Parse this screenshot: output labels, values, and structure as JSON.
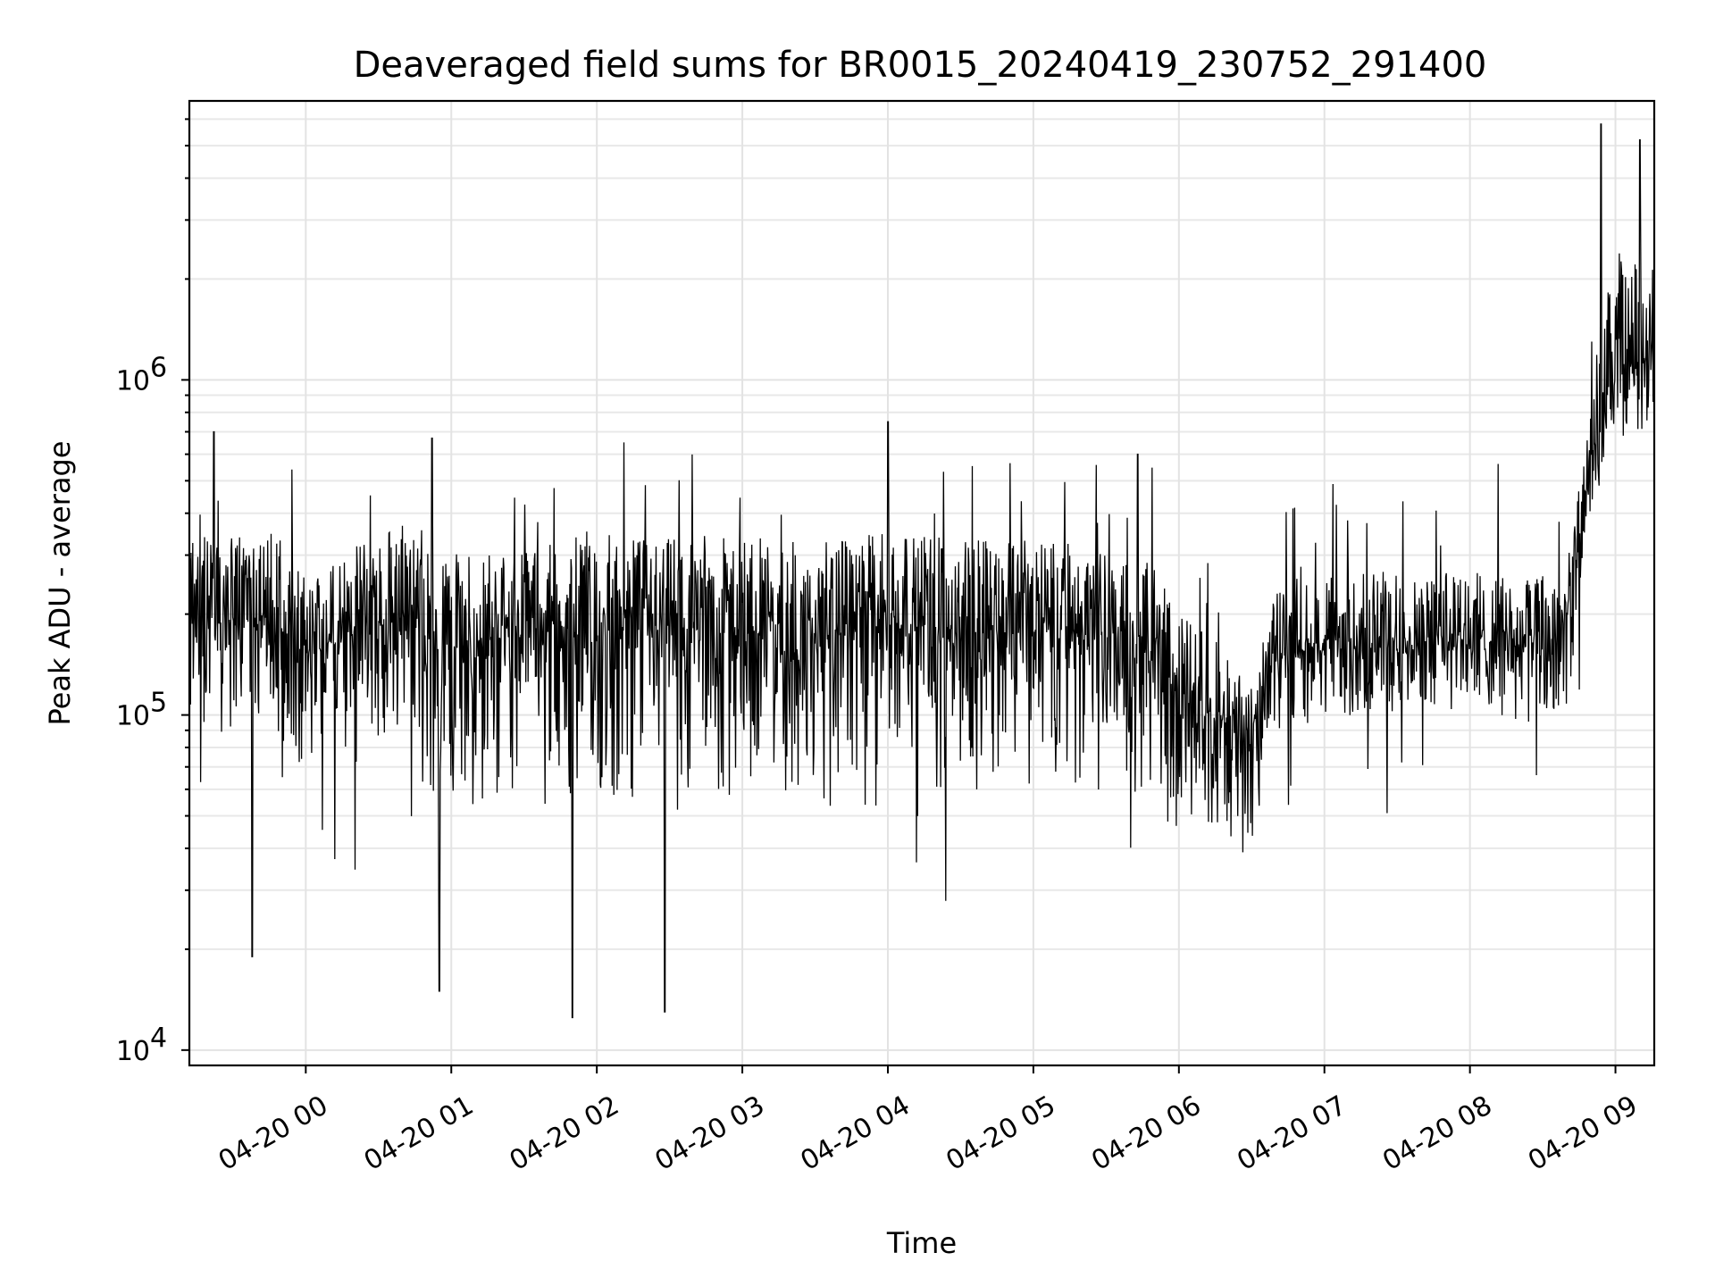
{
  "chart_data": {
    "type": "line",
    "title": "Deaveraged field sums for BR0015_20240419_230752_291400",
    "xlabel": "Time",
    "ylabel": "Peak ADU - average",
    "y_scale": "log",
    "ylim": [
      9000,
      6800000
    ],
    "xlim": [
      "2024-04-19 23:12",
      "2024-04-20 09:16"
    ],
    "grid": true,
    "legend": "none",
    "line_color": "#000000",
    "x_ticks": [
      {
        "at": "2024-04-20 00:00",
        "label": "04-20 00"
      },
      {
        "at": "2024-04-20 01:00",
        "label": "04-20 01"
      },
      {
        "at": "2024-04-20 02:00",
        "label": "04-20 02"
      },
      {
        "at": "2024-04-20 03:00",
        "label": "04-20 03"
      },
      {
        "at": "2024-04-20 04:00",
        "label": "04-20 04"
      },
      {
        "at": "2024-04-20 05:00",
        "label": "04-20 05"
      },
      {
        "at": "2024-04-20 06:00",
        "label": "04-20 06"
      },
      {
        "at": "2024-04-20 07:00",
        "label": "04-20 07"
      },
      {
        "at": "2024-04-20 08:00",
        "label": "04-20 08"
      },
      {
        "at": "2024-04-20 09:00",
        "label": "04-20 09"
      }
    ],
    "y_ticks": [
      {
        "value": 10000,
        "base": "10",
        "exp": "4"
      },
      {
        "value": 100000,
        "base": "10",
        "exp": "5"
      },
      {
        "value": 1000000,
        "base": "10",
        "exp": "6"
      }
    ],
    "series": [
      {
        "x": [
          "2024-04-19 23:12",
          "2024-04-19 23:30",
          "2024-04-19 23:45",
          "2024-04-20 00:00",
          "2024-04-20 00:20",
          "2024-04-20 00:40",
          "2024-04-20 00:50",
          "2024-04-20 01:00",
          "2024-04-20 01:20",
          "2024-04-20 01:40",
          "2024-04-20 02:00",
          "2024-04-20 02:30",
          "2024-04-20 03:00",
          "2024-04-20 03:30",
          "2024-04-20 04:00",
          "2024-04-20 04:30",
          "2024-04-20 05:00",
          "2024-04-20 05:30",
          "2024-04-20 05:50",
          "2024-04-20 06:00",
          "2024-04-20 06:15",
          "2024-04-20 06:30",
          "2024-04-20 06:40",
          "2024-04-20 07:00",
          "2024-04-20 07:30",
          "2024-04-20 08:00",
          "2024-04-20 08:20",
          "2024-04-20 08:40",
          "2024-04-20 08:50",
          "2024-04-20 09:00",
          "2024-04-20 09:16"
        ],
        "median": [
          200000,
          190000,
          200000,
          150000,
          180000,
          200000,
          170000,
          160000,
          170000,
          180000,
          170000,
          180000,
          180000,
          170000,
          190000,
          180000,
          180000,
          170000,
          160000,
          110000,
          100000,
          80000,
          150000,
          160000,
          170000,
          170000,
          160000,
          170000,
          600000,
          1100000,
          1200000
        ],
        "spread_lo": [
          0.45,
          0.45,
          0.45,
          0.45,
          0.4,
          0.35,
          0.3,
          0.32,
          0.3,
          0.3,
          0.32,
          0.3,
          0.32,
          0.3,
          0.32,
          0.3,
          0.35,
          0.35,
          0.35,
          0.4,
          0.45,
          0.5,
          0.6,
          0.6,
          0.6,
          0.6,
          0.6,
          0.6,
          0.65,
          0.6,
          0.6
        ],
        "spread_hi": [
          1.8,
          1.9,
          1.8,
          1.8,
          1.8,
          1.9,
          1.8,
          1.9,
          1.8,
          1.8,
          1.9,
          1.9,
          1.9,
          1.9,
          1.9,
          1.9,
          1.9,
          1.8,
          1.8,
          1.8,
          1.7,
          1.6,
          1.6,
          1.6,
          1.6,
          1.6,
          1.6,
          1.6,
          1.6,
          2.2,
          1.8
        ],
        "peaks": [
          {
            "x": "2024-04-19 23:22",
            "value": 700000
          },
          {
            "x": "2024-04-19 23:38",
            "value": 19000
          },
          {
            "x": "2024-04-20 00:52",
            "value": 670000
          },
          {
            "x": "2024-04-20 00:55",
            "value": 15000
          },
          {
            "x": "2024-04-20 01:50",
            "value": 12500
          },
          {
            "x": "2024-04-20 02:28",
            "value": 13000
          },
          {
            "x": "2024-04-20 04:00",
            "value": 750000
          },
          {
            "x": "2024-04-20 05:43",
            "value": 600000
          },
          {
            "x": "2024-04-20 08:54",
            "value": 5800000
          },
          {
            "x": "2024-04-20 09:10",
            "value": 5200000
          }
        ]
      }
    ]
  }
}
